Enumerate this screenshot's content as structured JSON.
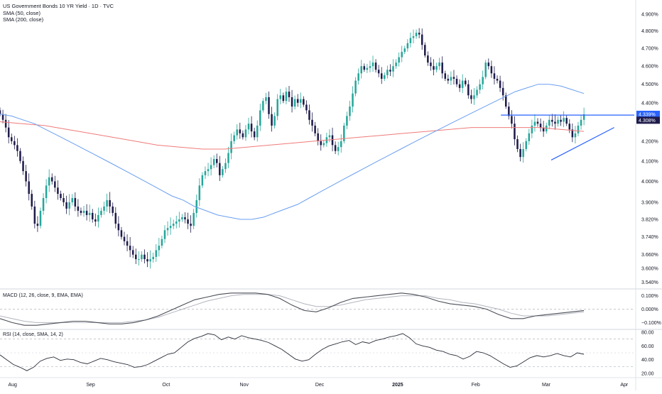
{
  "chart_data": {
    "type": "candlestick",
    "title": "US Government Bonds 10 YR Yield · 1D · TVC",
    "legend": [
      "SMA (50, close)",
      "SMA (200, close)"
    ],
    "colors": {
      "up": "#26a69a",
      "down": "#1e1b4b",
      "sma50": "#6a9ff0",
      "sma200": "#f07a7a",
      "pattern": "#2962ff",
      "tag_current": "#2962ff",
      "tag_last": "#1e1b4b"
    },
    "x_axis": {
      "ticks": [
        "Aug",
        "Sep",
        "Oct",
        "Nov",
        "Dec",
        "2025",
        "Feb",
        "Mar",
        "Apr"
      ],
      "tick_days": [
        5,
        36,
        66,
        97,
        127,
        158,
        189,
        217,
        248
      ],
      "range": [
        0,
        252
      ]
    },
    "price_axis": {
      "ticks": [
        "4.900%",
        "4.800%",
        "4.700%",
        "4.600%",
        "4.500%",
        "4.400%",
        "4.300%",
        "4.200%",
        "4.100%",
        "4.000%",
        "3.900%",
        "3.820%",
        "3.740%",
        "3.660%",
        "3.600%",
        "3.540%"
      ],
      "tick_values": [
        4.9,
        4.8,
        4.7,
        4.6,
        4.5,
        4.4,
        4.3,
        4.2,
        4.1,
        4.0,
        3.9,
        3.82,
        3.74,
        3.66,
        3.6,
        3.54
      ],
      "scale": "log",
      "range": [
        3.52,
        4.95
      ],
      "tags": [
        {
          "label": "4.339%",
          "value": 4.339,
          "kind": "current"
        },
        {
          "label": "4.308%",
          "value": 4.308,
          "kind": "last"
        }
      ]
    },
    "candles_close": [
      4.34,
      4.31,
      4.27,
      4.22,
      4.2,
      4.18,
      4.15,
      4.1,
      4.05,
      4.0,
      3.94,
      3.88,
      3.8,
      3.79,
      3.86,
      3.92,
      3.98,
      4.02,
      4.0,
      3.97,
      3.94,
      3.92,
      3.9,
      3.87,
      3.9,
      3.92,
      3.88,
      3.86,
      3.85,
      3.86,
      3.84,
      3.85,
      3.82,
      3.81,
      3.84,
      3.86,
      3.88,
      3.91,
      3.88,
      3.85,
      3.8,
      3.77,
      3.74,
      3.72,
      3.7,
      3.68,
      3.66,
      3.64,
      3.64,
      3.66,
      3.64,
      3.63,
      3.64,
      3.65,
      3.68,
      3.7,
      3.73,
      3.77,
      3.78,
      3.79,
      3.8,
      3.81,
      3.82,
      3.83,
      3.82,
      3.8,
      3.79,
      3.85,
      3.91,
      3.98,
      4.03,
      4.05,
      4.06,
      4.08,
      4.11,
      4.09,
      4.03,
      4.06,
      4.09,
      4.14,
      4.2,
      4.23,
      4.26,
      4.24,
      4.22,
      4.26,
      4.29,
      4.25,
      4.22,
      4.28,
      4.36,
      4.41,
      4.43,
      4.34,
      4.28,
      4.33,
      4.42,
      4.44,
      4.41,
      4.46,
      4.43,
      4.38,
      4.42,
      4.4,
      4.42,
      4.39,
      4.36,
      4.31,
      4.28,
      4.24,
      4.2,
      4.18,
      4.19,
      4.22,
      4.23,
      4.18,
      4.15,
      4.17,
      4.2,
      4.28,
      4.33,
      4.38,
      4.45,
      4.52,
      4.56,
      4.6,
      4.58,
      4.59,
      4.6,
      4.62,
      4.58,
      4.56,
      4.53,
      4.55,
      4.58,
      4.57,
      4.6,
      4.62,
      4.65,
      4.68,
      4.7,
      4.73,
      4.76,
      4.77,
      4.79,
      4.78,
      4.72,
      4.66,
      4.62,
      4.6,
      4.58,
      4.6,
      4.62,
      4.56,
      4.53,
      4.52,
      4.54,
      4.53,
      4.5,
      4.48,
      4.52,
      4.5,
      4.44,
      4.42,
      4.44,
      4.47,
      4.5,
      4.54,
      4.62,
      4.6,
      4.56,
      4.53,
      4.52,
      4.48,
      4.44,
      4.38,
      4.33,
      4.29,
      4.21,
      4.16,
      4.12,
      4.16,
      4.2,
      4.24,
      4.28,
      4.3,
      4.29,
      4.27,
      4.25,
      4.28,
      4.31,
      4.3,
      4.29,
      4.31,
      4.3,
      4.32,
      4.29,
      4.26,
      4.22,
      4.24,
      4.28,
      4.31,
      4.339
    ],
    "sma50": [
      4.34,
      4.33,
      4.31,
      4.29,
      4.26,
      4.23,
      4.2,
      4.17,
      4.14,
      4.11,
      4.08,
      4.05,
      4.02,
      3.99,
      3.96,
      3.93,
      3.91,
      3.88,
      3.86,
      3.84,
      3.83,
      3.82,
      3.82,
      3.83,
      3.85,
      3.87,
      3.89,
      3.92,
      3.95,
      3.98,
      4.01,
      4.04,
      4.07,
      4.1,
      4.13,
      4.16,
      4.19,
      4.22,
      4.25,
      4.28,
      4.31,
      4.34,
      4.37,
      4.4,
      4.43,
      4.46,
      4.48,
      4.5,
      4.5,
      4.49,
      4.47,
      4.45
    ],
    "sma200": [
      4.3,
      4.29,
      4.28,
      4.26,
      4.24,
      4.22,
      4.2,
      4.18,
      4.17,
      4.16,
      4.16,
      4.17,
      4.18,
      4.19,
      4.2,
      4.21,
      4.22,
      4.23,
      4.24,
      4.25,
      4.26,
      4.27,
      4.27,
      4.27,
      4.27,
      4.26,
      4.25
    ],
    "pattern": {
      "resistance": 4.335,
      "support_start": 4.105,
      "support_end": 4.27
    },
    "macd": {
      "label": "MACD (12, 26, close, 9, EMA, EMA)",
      "ticks": [
        "0.100%",
        "0.000%",
        "−0.100%"
      ],
      "tick_values": [
        0.1,
        0.0,
        -0.1
      ],
      "range": [
        -0.14,
        0.14
      ],
      "macd_line": [
        -0.07,
        -0.1,
        -0.12,
        -0.12,
        -0.11,
        -0.1,
        -0.09,
        -0.09,
        -0.1,
        -0.11,
        -0.11,
        -0.1,
        -0.08,
        -0.05,
        -0.01,
        0.03,
        0.07,
        0.09,
        0.11,
        0.12,
        0.12,
        0.12,
        0.11,
        0.08,
        0.03,
        -0.01,
        -0.02,
        0.01,
        0.05,
        0.08,
        0.09,
        0.1,
        0.11,
        0.12,
        0.11,
        0.09,
        0.06,
        0.04,
        0.03,
        0.02,
        0.0,
        -0.04,
        -0.07,
        -0.07,
        -0.05,
        -0.04,
        -0.03,
        -0.02,
        -0.01
      ],
      "signal_line": [
        -0.05,
        -0.07,
        -0.09,
        -0.1,
        -0.1,
        -0.1,
        -0.1,
        -0.1,
        -0.1,
        -0.1,
        -0.1,
        -0.09,
        -0.08,
        -0.06,
        -0.03,
        0.0,
        0.03,
        0.06,
        0.08,
        0.1,
        0.11,
        0.11,
        0.11,
        0.1,
        0.07,
        0.04,
        0.02,
        0.02,
        0.03,
        0.05,
        0.07,
        0.08,
        0.09,
        0.1,
        0.1,
        0.1,
        0.08,
        0.07,
        0.05,
        0.04,
        0.02,
        0.0,
        -0.03,
        -0.05,
        -0.05,
        -0.05,
        -0.04,
        -0.03,
        -0.02
      ]
    },
    "rsi": {
      "label": "RSI (14, close, SMA, 14, 2)",
      "ticks": [
        "80.00",
        "60.00",
        "40.00",
        "20.00"
      ],
      "tick_values": [
        80,
        60,
        40,
        20
      ],
      "range": [
        16,
        82
      ],
      "bands": [
        70,
        30
      ],
      "values": [
        47,
        40,
        33,
        29,
        24,
        29,
        38,
        42,
        44,
        39,
        41,
        40,
        36,
        34,
        38,
        42,
        40,
        37,
        35,
        33,
        29,
        30,
        33,
        38,
        43,
        48,
        50,
        58,
        66,
        71,
        74,
        78,
        76,
        69,
        73,
        70,
        75,
        72,
        70,
        68,
        65,
        60,
        55,
        48,
        41,
        38,
        40,
        48,
        55,
        60,
        63,
        66,
        68,
        62,
        66,
        64,
        68,
        70,
        73,
        75,
        78,
        72,
        63,
        60,
        58,
        54,
        52,
        48,
        46,
        41,
        45,
        52,
        50,
        46,
        40,
        34,
        29,
        31,
        37,
        43,
        46,
        44,
        46,
        49,
        46,
        44,
        50,
        48
      ]
    }
  }
}
